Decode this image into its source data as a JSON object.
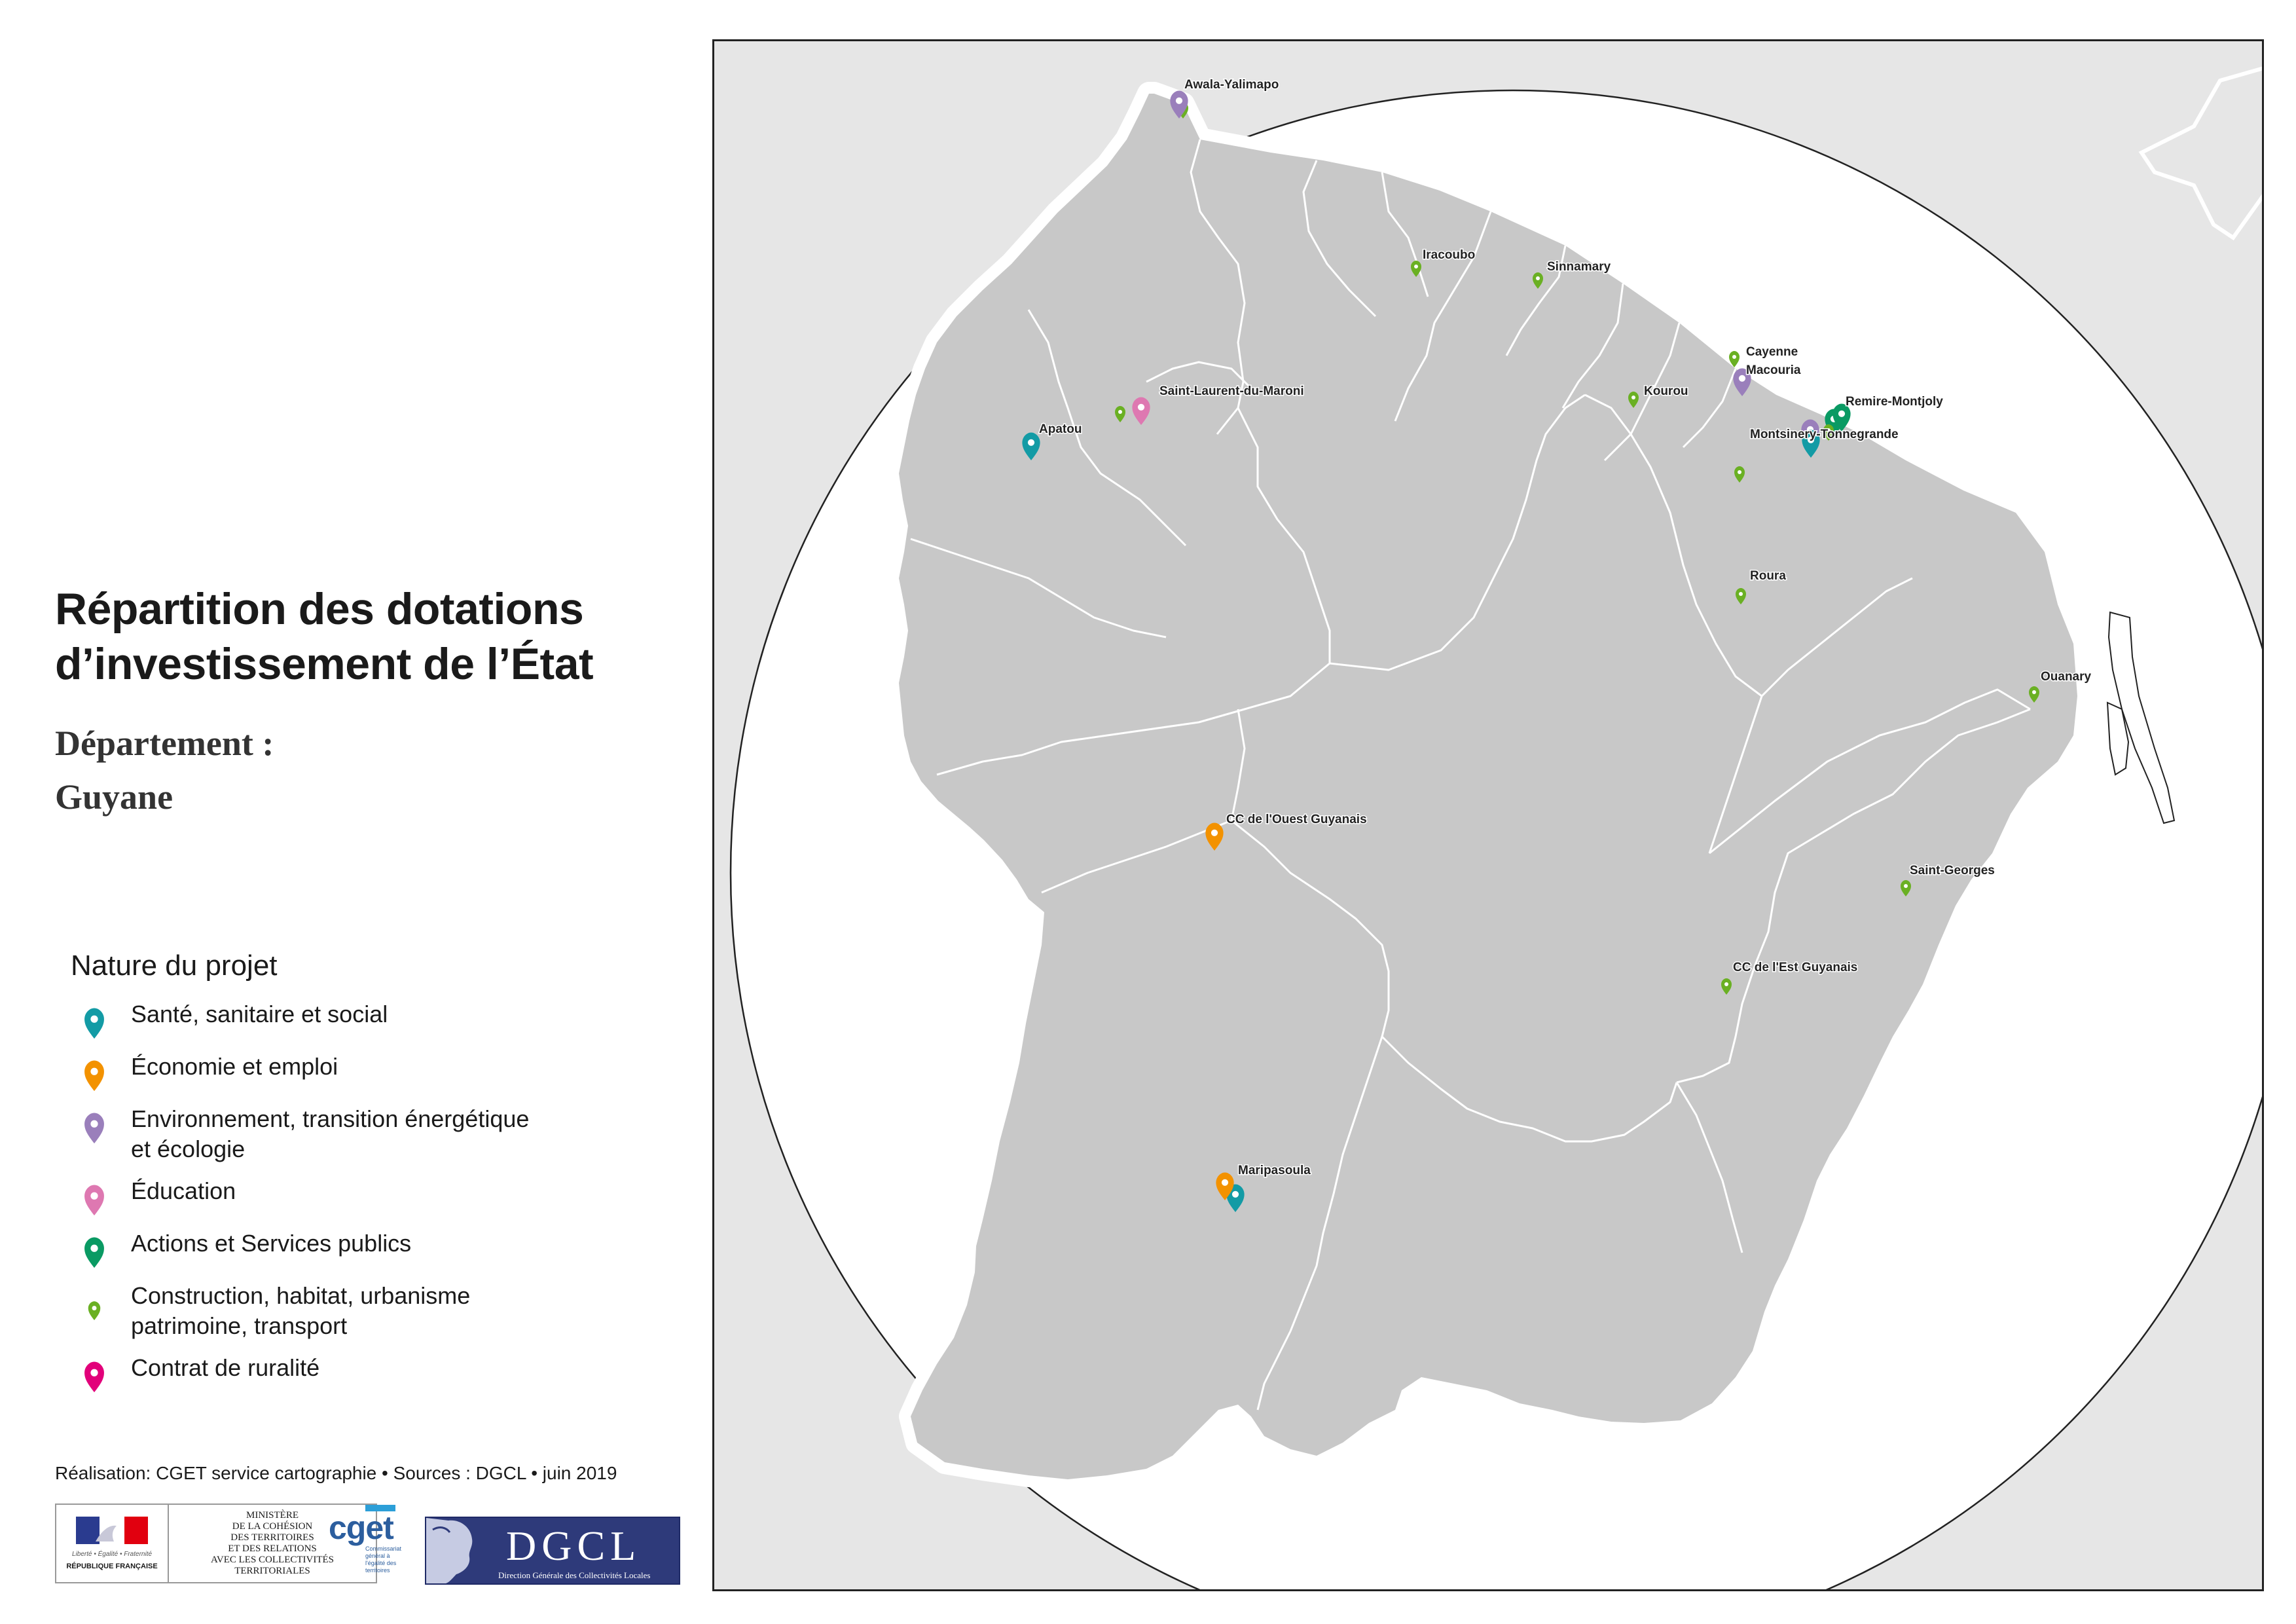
{
  "header": {
    "title_line1": "Répartition des dotations",
    "title_line2": "d’investissement de l’État",
    "department_label": "Département :",
    "department_name": "Guyane"
  },
  "legend": {
    "title": "Nature du projet",
    "items": [
      {
        "key": "sante",
        "label_lines": [
          "Santé, sanitaire et social"
        ],
        "color": "#139ba5",
        "icon": "map-pin-icon"
      },
      {
        "key": "economie",
        "label_lines": [
          "Économie et emploi"
        ],
        "color": "#f39200",
        "icon": "map-pin-icon"
      },
      {
        "key": "environnement",
        "label_lines": [
          "Environnement, transition énergétique",
          "et écologie"
        ],
        "color": "#9a7fbb",
        "icon": "map-pin-icon"
      },
      {
        "key": "education",
        "label_lines": [
          "Éducation"
        ],
        "color": "#de78b1",
        "icon": "map-pin-icon"
      },
      {
        "key": "actions",
        "label_lines": [
          "Actions et Services publics"
        ],
        "color": "#0a9a63",
        "icon": "map-pin-icon"
      },
      {
        "key": "construction",
        "label_lines": [
          "Construction, habitat, urbanisme",
          "patrimoine, transport"
        ],
        "color": "#6ab023",
        "icon": "small-map-pin-icon"
      },
      {
        "key": "ruralite",
        "label_lines": [
          "Contrat de ruralité"
        ],
        "color": "#e2007a",
        "icon": "map-pin-icon"
      }
    ]
  },
  "credits": "Réalisation: CGET service cartographie • Sources : DGCL • juin 2019",
  "logos": {
    "rf_motto": "Liberté • Égalité • Fraternité",
    "rf_name": "RÉPUBLIQUE FRANÇAISE",
    "ministere_lines": [
      "MINISTÈRE",
      "DE LA COHÉSION",
      "DES TERRITOIRES",
      "ET DES RELATIONS",
      "AVEC LES COLLECTIVITÉS",
      "TERRITORIALES"
    ],
    "cget_name": "cget",
    "cget_sub": "Commissariat général à l'égalité des territoires",
    "dgcl_name": "DGCL",
    "dgcl_sub": "Direction Générale des Collectivités Locales"
  },
  "map": {
    "colors": {
      "sea": "#e6e6e6",
      "land": "#c8c8c8",
      "coast_halo": "#ffffff",
      "commune_border": "#ffffff"
    },
    "places": [
      {
        "name": "Awala-Yalimapo",
        "type": "environnement"
      },
      {
        "name": "Iracoubo",
        "type": "construction"
      },
      {
        "name": "Sinnamary",
        "type": "construction"
      },
      {
        "name": "Cayenne",
        "type": "construction"
      },
      {
        "name": "Macouria",
        "type": "environnement"
      },
      {
        "name": "Saint-Laurent-du-Maroni",
        "type": "education"
      },
      {
        "name": "Kourou",
        "type": "construction"
      },
      {
        "name": "Remire-Montjoly",
        "type": "actions"
      },
      {
        "name": "Apatou",
        "type": "sante"
      },
      {
        "name": "Montsinery-Tonnegrande",
        "type": "sante"
      },
      {
        "name": "Roura",
        "type": "construction"
      },
      {
        "name": "Ouanary",
        "type": "construction"
      },
      {
        "name": "CC de l'Ouest Guyanais",
        "type": "economie"
      },
      {
        "name": "Saint-Georges",
        "type": "construction"
      },
      {
        "name": "CC de l'Est Guyanais",
        "type": "construction"
      },
      {
        "name": "Maripasoula",
        "type": "economie"
      }
    ]
  }
}
